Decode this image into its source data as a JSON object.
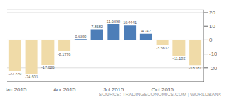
{
  "chart_data": {
    "type": "bar",
    "categories": [
      "Jan 2015",
      null,
      null,
      "Apr 2015",
      null,
      null,
      "Jul 2015",
      null,
      null,
      "Oct 2015",
      null,
      null
    ],
    "values": [
      -22.339,
      -24.603,
      -17.626,
      -8.1776,
      0.6388,
      7.8682,
      11.6098,
      10.4441,
      4.742,
      -3.5632,
      -11.182,
      -18.181
    ],
    "colors": [
      "#f0dba8",
      "#f0dba8",
      "#f0dba8",
      "#f0dba8",
      "#4d7eb8",
      "#4d7eb8",
      "#4d7eb8",
      "#4d7eb8",
      "#4d7eb8",
      "#f0dba8",
      "#f0dba8",
      "#f0dba8"
    ],
    "ylim": [
      -30,
      22
    ],
    "yticks": [
      -20,
      -10,
      0,
      10,
      20
    ],
    "grid": true,
    "data_labels": true,
    "annotations": [
      "SOURCE: TRADINGECONOMICS.COM | WORLDBANK"
    ]
  }
}
